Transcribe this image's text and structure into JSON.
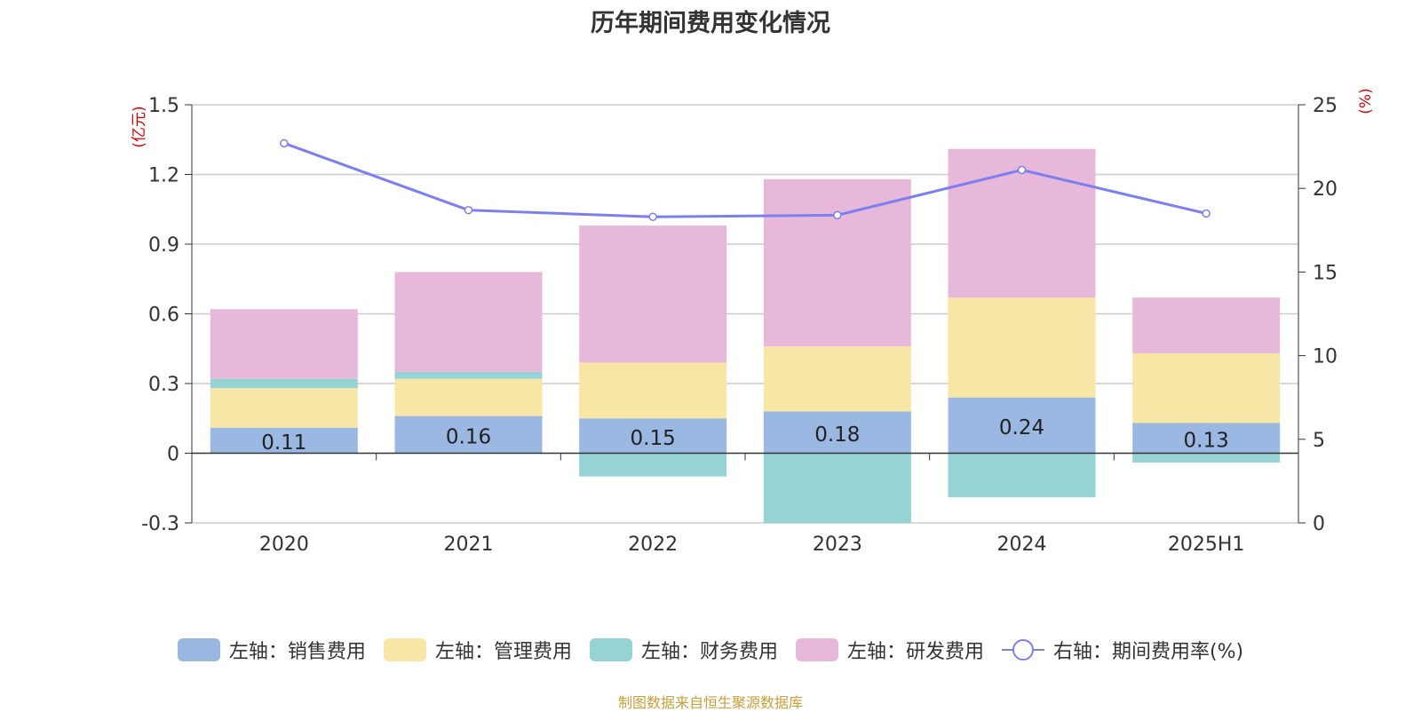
{
  "chart_data": {
    "type": "bar",
    "title": "历年期间费用变化情况",
    "categories": [
      "2020",
      "2021",
      "2022",
      "2023",
      "2024",
      "2025H1"
    ],
    "left_axis": {
      "label": "(亿元)",
      "ticks": [
        "1.5",
        "1.2",
        "0.9",
        "0.6",
        "0.3",
        "0",
        "-0.3"
      ],
      "ylim": [
        -0.3,
        1.5
      ]
    },
    "right_axis": {
      "label": "(%)",
      "ticks": [
        "25",
        "20",
        "15",
        "10",
        "5",
        "0"
      ],
      "ylim": [
        0,
        25
      ]
    },
    "series": [
      {
        "name": "左轴：销售费用",
        "type": "bar",
        "axis": "left",
        "color": "#9bb8e3",
        "values": [
          0.11,
          0.16,
          0.15,
          0.18,
          0.24,
          0.13
        ],
        "labels": [
          "0.11",
          "0.16",
          "0.15",
          "0.18",
          "0.24",
          "0.13"
        ]
      },
      {
        "name": "左轴：管理费用",
        "type": "bar",
        "axis": "left",
        "color": "#f8e6a7",
        "values": [
          0.17,
          0.16,
          0.24,
          0.28,
          0.43,
          0.3
        ]
      },
      {
        "name": "左轴：财务费用",
        "type": "bar",
        "axis": "left",
        "color": "#96d3d4",
        "values": [
          0.04,
          0.03,
          -0.1,
          -0.3,
          -0.19,
          -0.04
        ]
      },
      {
        "name": "左轴：研发费用",
        "type": "bar",
        "axis": "left",
        "color": "#e7b8da",
        "values": [
          0.3,
          0.43,
          0.59,
          0.72,
          0.64,
          0.24
        ]
      },
      {
        "name": "右轴：期间费用率(%)",
        "type": "line",
        "axis": "right",
        "color": "#7b7ff0",
        "values": [
          22.7,
          18.7,
          18.3,
          18.4,
          21.1,
          18.5
        ]
      }
    ],
    "grid": true,
    "legend_position": "bottom"
  },
  "source_note": "制图数据来自恒生聚源数据库"
}
